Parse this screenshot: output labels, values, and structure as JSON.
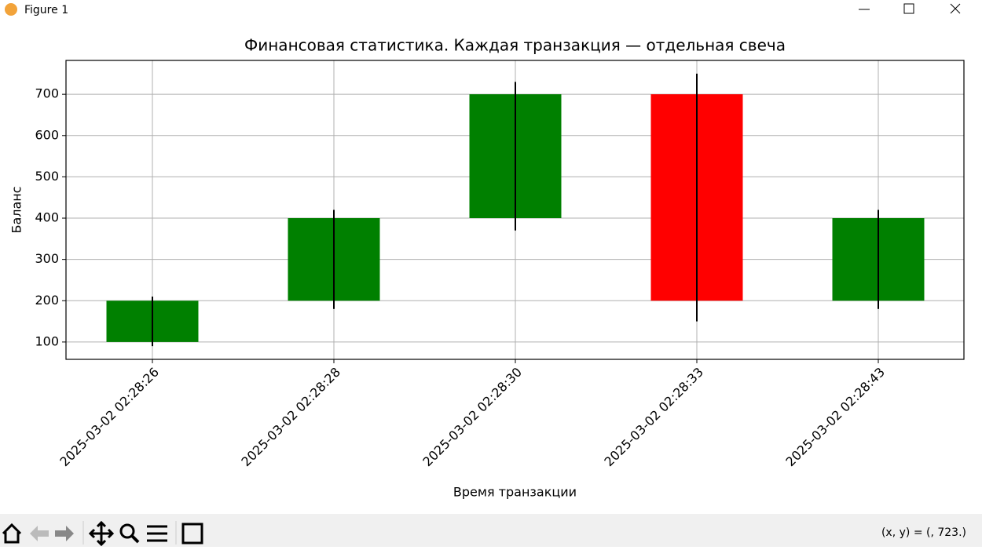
{
  "window": {
    "title": "Figure 1",
    "status": "(x, y) = (, 723.)"
  },
  "chart_data": {
    "type": "candlestick",
    "title": "Финансовая статистика. Каждая транзакция — отдельная свеча",
    "xlabel": "Время транзакции",
    "ylabel": "Баланс",
    "categories": [
      "2025-03-02 02:28:26",
      "2025-03-02 02:28:28",
      "2025-03-02 02:28:30",
      "2025-03-02 02:28:33",
      "2025-03-02 02:28:43"
    ],
    "open": [
      100,
      200,
      400,
      700,
      200
    ],
    "close": [
      200,
      400,
      700,
      200,
      400
    ],
    "high": [
      210,
      420,
      730,
      750,
      420
    ],
    "low": [
      90,
      180,
      370,
      150,
      180
    ],
    "up_color": "#008000",
    "down_color": "#ff0000",
    "wick_color": "#000000",
    "ylim": [
      58,
      782
    ],
    "yticks": [
      100,
      200,
      300,
      400,
      500,
      600,
      700
    ],
    "grid": true
  }
}
